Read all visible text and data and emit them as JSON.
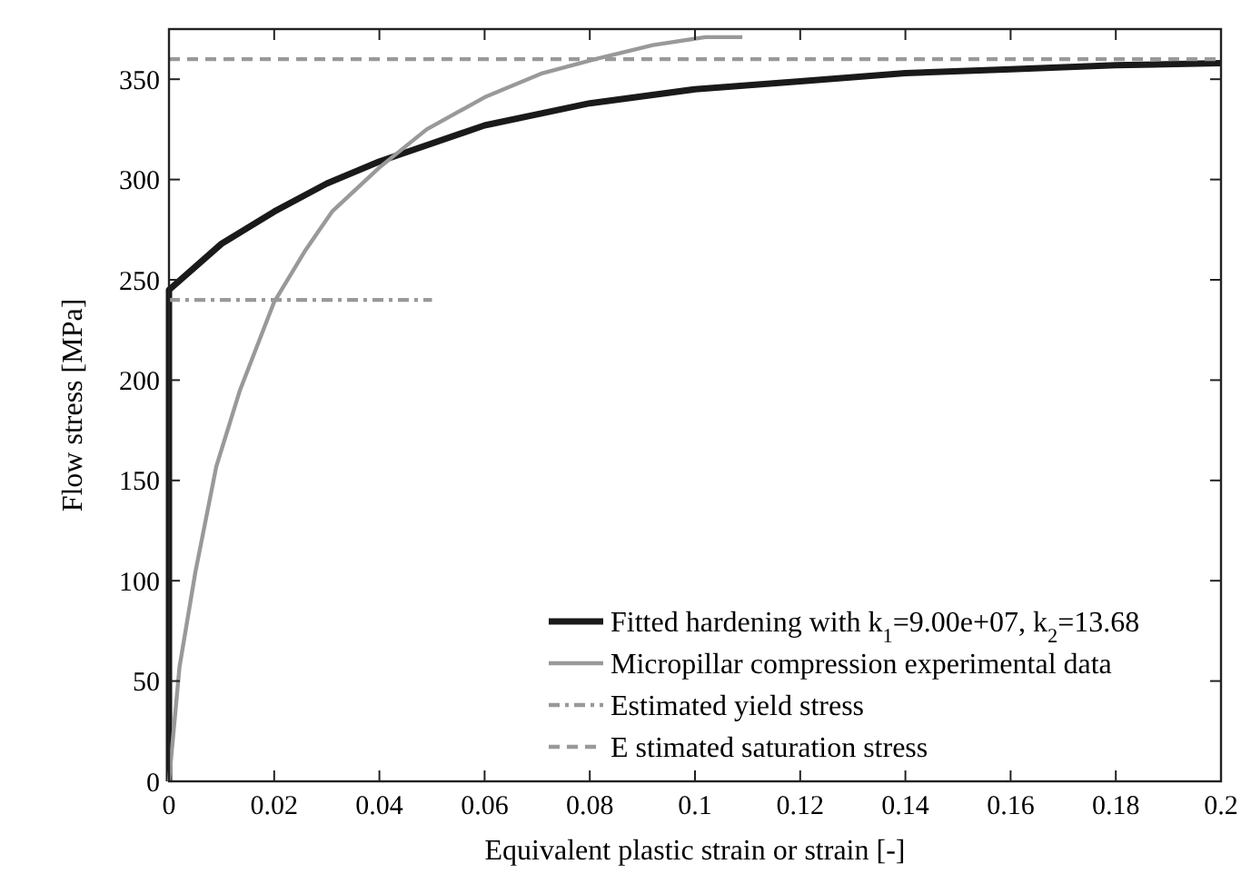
{
  "chart_data": {
    "type": "line",
    "xlabel": "Equivalent plastic strain or strain [-]",
    "ylabel": "Flow stress [MPa]",
    "xlim": [
      0,
      0.2
    ],
    "ylim": [
      0,
      375
    ],
    "xticks": [
      0,
      0.02,
      0.04,
      0.06,
      0.08,
      0.1,
      0.12,
      0.14,
      0.16,
      0.18,
      0.2
    ],
    "yticks": [
      0,
      50,
      100,
      150,
      200,
      250,
      300,
      350
    ],
    "grid": false,
    "legend": "bottom right",
    "marker": "none",
    "series": [
      {
        "name": "Fitted hardening with k$_{1}$=9.00e+07, k$_{2}$=13.68",
        "color": "#1a1a1a",
        "line_style": "solid",
        "x": [
          0,
          0,
          0.01,
          0.02,
          0.03,
          0.04,
          0.06,
          0.08,
          0.1,
          0.12,
          0.14,
          0.16,
          0.18,
          0.2
        ],
        "values": [
          0,
          245,
          268,
          284,
          298,
          309,
          327,
          338,
          345,
          349,
          353,
          355,
          357,
          358
        ]
      },
      {
        "name": "Micropillar compression experimental data",
        "color": "#999999",
        "line_style": "solid",
        "x": [
          0,
          0.002,
          0.005,
          0.009,
          0.0135,
          0.02,
          0.026,
          0.031,
          0.04,
          0.049,
          0.06,
          0.071,
          0.081,
          0.092,
          0.102,
          0.109
        ],
        "values": [
          0,
          57,
          104,
          157,
          195,
          239,
          265,
          284,
          306,
          325,
          341,
          353,
          360,
          367,
          371,
          371
        ]
      },
      {
        "name": "Estimated yield stress",
        "color": "#999999",
        "line_style": "dashdot",
        "x": [
          0,
          0.05
        ],
        "values": [
          240,
          240
        ]
      },
      {
        "name": "E stimated saturation stress",
        "color": "#999999",
        "line_style": "dashed",
        "x": [
          0,
          0.2
        ],
        "values": [
          360,
          360
        ]
      }
    ]
  }
}
